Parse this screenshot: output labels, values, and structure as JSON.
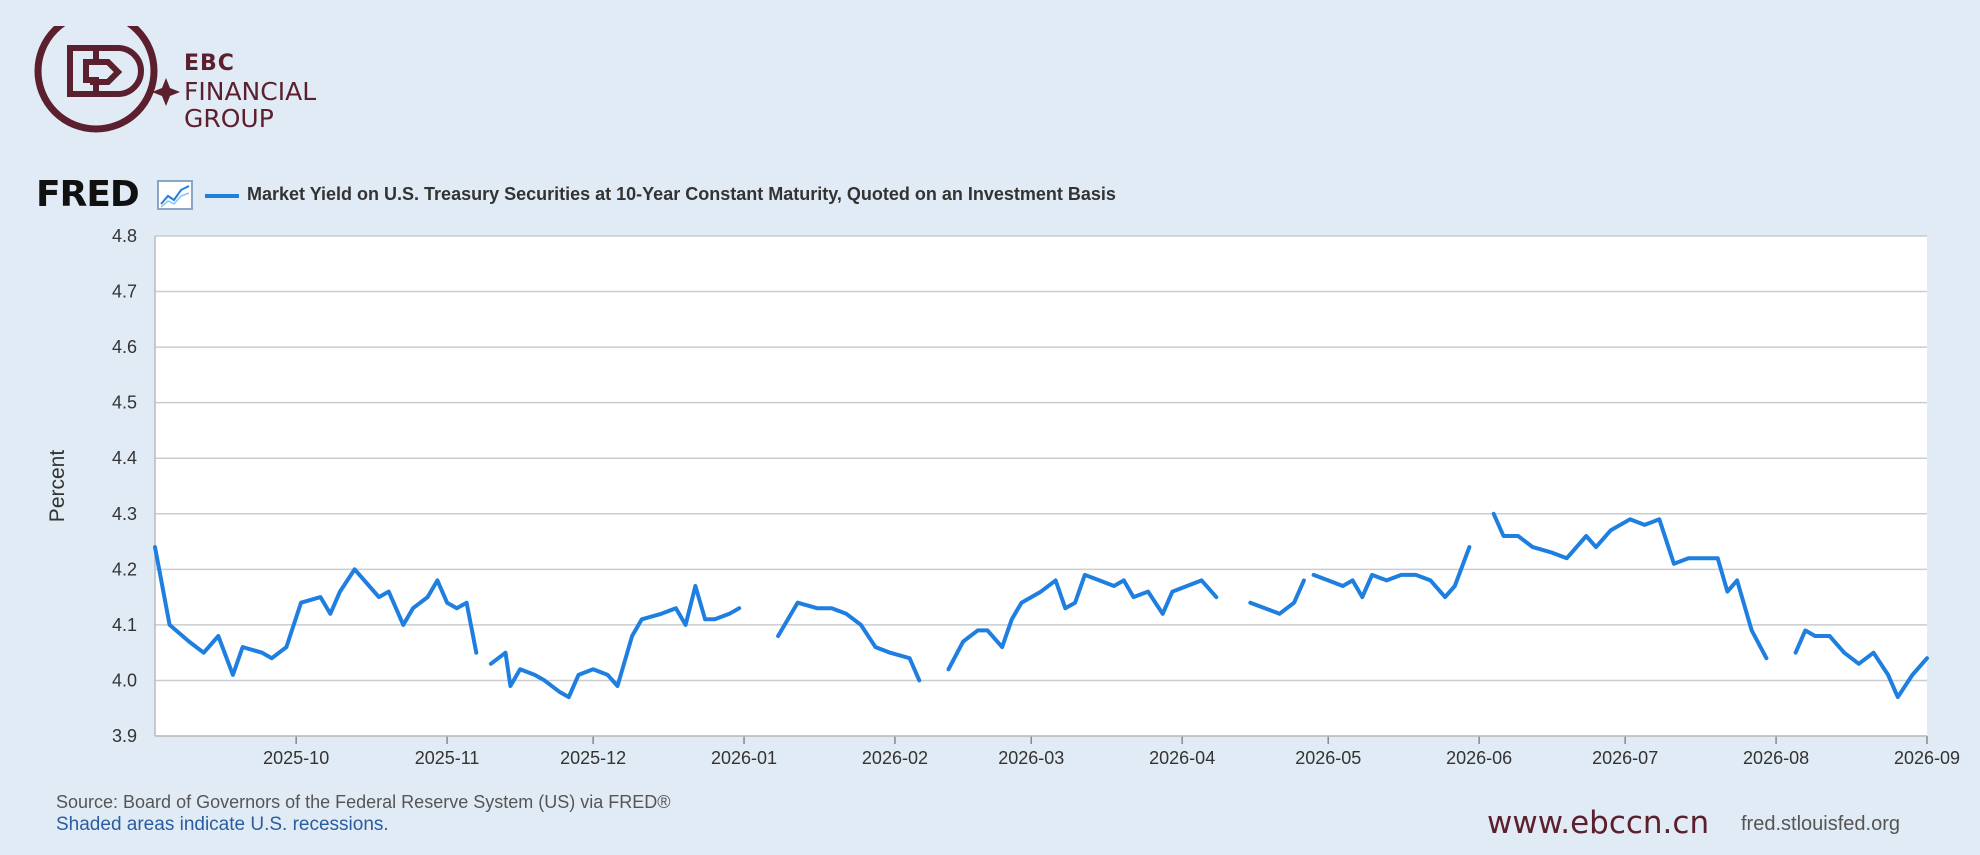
{
  "brand": {
    "line1": "EBC",
    "line2": "FINANCIAL",
    "line3": "GROUP",
    "color": "#5b1f2d"
  },
  "fred_logo": "FRED",
  "legend": {
    "label": "Market Yield on U.S. Treasury Securities at 10-Year Constant Maturity, Quoted on an Investment Basis",
    "color": "#1e7fe0"
  },
  "footer": {
    "source": "Source: Board of Governors of the Federal Reserve System (US) via FRED®",
    "recessions": "Shaded areas indicate U.S. recessions.",
    "website": "www.ebccn.cn",
    "fred_url": "fred.stlouisfed.org"
  },
  "chart_data": {
    "type": "line",
    "ylabel": "Percent",
    "ylim": [
      3.9,
      4.8
    ],
    "yticks": [
      "4.8",
      "4.7",
      "4.6",
      "4.5",
      "4.4",
      "4.3",
      "4.2",
      "4.1",
      "4.0",
      "3.9"
    ],
    "xticks": [
      "2025-10",
      "2025-11",
      "2025-12",
      "2026-01",
      "2026-02",
      "2026-03",
      "2026-04",
      "2026-05",
      "2026-06",
      "2026-07",
      "2026-08",
      "2026-09"
    ],
    "xlim": [
      "2025-09-02",
      "2026-09-01"
    ],
    "grid": true,
    "series": [
      {
        "name": "Market Yield on U.S. Treasury Securities at 10-Year Constant Maturity, Quoted on an Investment Basis",
        "color": "#1e7fe0",
        "segments": [
          [
            [
              "2025-09-02",
              4.24
            ],
            [
              "2025-09-05",
              4.1
            ],
            [
              "2025-09-09",
              4.07
            ],
            [
              "2025-09-12",
              4.05
            ],
            [
              "2025-09-15",
              4.08
            ],
            [
              "2025-09-18",
              4.01
            ],
            [
              "2025-09-20",
              4.06
            ],
            [
              "2025-09-24",
              4.05
            ],
            [
              "2025-09-26",
              4.04
            ],
            [
              "2025-09-29",
              4.06
            ],
            [
              "2025-10-02",
              4.14
            ],
            [
              "2025-10-06",
              4.15
            ],
            [
              "2025-10-08",
              4.12
            ],
            [
              "2025-10-10",
              4.16
            ],
            [
              "2025-10-13",
              4.2
            ],
            [
              "2025-10-16",
              4.17
            ],
            [
              "2025-10-18",
              4.15
            ],
            [
              "2025-10-20",
              4.16
            ],
            [
              "2025-10-23",
              4.1
            ],
            [
              "2025-10-25",
              4.13
            ],
            [
              "2025-10-28",
              4.15
            ],
            [
              "2025-10-30",
              4.18
            ],
            [
              "2025-11-01",
              4.14
            ],
            [
              "2025-11-03",
              4.13
            ],
            [
              "2025-11-05",
              4.14
            ],
            [
              "2025-11-07",
              4.05
            ]
          ],
          [
            [
              "2025-11-10",
              4.03
            ],
            [
              "2025-11-13",
              4.05
            ],
            [
              "2025-11-14",
              3.99
            ],
            [
              "2025-11-16",
              4.02
            ],
            [
              "2025-11-19",
              4.01
            ],
            [
              "2025-11-21",
              4.0
            ],
            [
              "2025-11-24",
              3.98
            ],
            [
              "2025-11-26",
              3.97
            ],
            [
              "2025-11-28",
              4.01
            ],
            [
              "2025-12-01",
              4.02
            ],
            [
              "2025-12-04",
              4.01
            ],
            [
              "2025-12-06",
              3.99
            ],
            [
              "2025-12-09",
              4.08
            ],
            [
              "2025-12-11",
              4.11
            ],
            [
              "2025-12-15",
              4.12
            ],
            [
              "2025-12-18",
              4.13
            ],
            [
              "2025-12-20",
              4.1
            ],
            [
              "2025-12-22",
              4.17
            ],
            [
              "2025-12-24",
              4.11
            ],
            [
              "2025-12-26",
              4.11
            ],
            [
              "2025-12-29",
              4.12
            ],
            [
              "2025-12-31",
              4.13
            ]
          ],
          [
            [
              "2026-01-08",
              4.08
            ],
            [
              "2026-01-12",
              4.14
            ],
            [
              "2026-01-16",
              4.13
            ],
            [
              "2026-01-19",
              4.13
            ],
            [
              "2026-01-22",
              4.12
            ],
            [
              "2026-01-25",
              4.1
            ],
            [
              "2026-01-28",
              4.06
            ],
            [
              "2026-01-31",
              4.05
            ],
            [
              "2026-02-04",
              4.04
            ],
            [
              "2026-02-06",
              4.0
            ]
          ],
          [
            [
              "2026-02-12",
              4.02
            ],
            [
              "2026-02-15",
              4.07
            ],
            [
              "2026-02-18",
              4.09
            ],
            [
              "2026-02-20",
              4.09
            ],
            [
              "2026-02-23",
              4.06
            ],
            [
              "2026-02-25",
              4.11
            ],
            [
              "2026-02-27",
              4.14
            ],
            [
              "2026-03-03",
              4.16
            ],
            [
              "2026-03-06",
              4.18
            ],
            [
              "2026-03-08",
              4.13
            ],
            [
              "2026-03-10",
              4.14
            ],
            [
              "2026-03-12",
              4.19
            ],
            [
              "2026-03-15",
              4.18
            ],
            [
              "2026-03-18",
              4.17
            ],
            [
              "2026-03-20",
              4.18
            ],
            [
              "2026-03-22",
              4.15
            ],
            [
              "2026-03-25",
              4.16
            ],
            [
              "2026-03-28",
              4.12
            ],
            [
              "2026-03-30",
              4.16
            ],
            [
              "2026-04-02",
              4.17
            ],
            [
              "2026-04-05",
              4.18
            ],
            [
              "2026-04-08",
              4.15
            ]
          ],
          [
            [
              "2026-04-15",
              4.14
            ],
            [
              "2026-04-18",
              4.13
            ],
            [
              "2026-04-21",
              4.12
            ],
            [
              "2026-04-24",
              4.14
            ],
            [
              "2026-04-26",
              4.18
            ]
          ],
          [
            [
              "2026-04-28",
              4.19
            ],
            [
              "2026-05-01",
              4.18
            ],
            [
              "2026-05-04",
              4.17
            ],
            [
              "2026-05-06",
              4.18
            ],
            [
              "2026-05-08",
              4.15
            ],
            [
              "2026-05-10",
              4.19
            ],
            [
              "2026-05-13",
              4.18
            ],
            [
              "2026-05-16",
              4.19
            ],
            [
              "2026-05-19",
              4.19
            ],
            [
              "2026-05-22",
              4.18
            ],
            [
              "2026-05-25",
              4.15
            ],
            [
              "2026-05-27",
              4.17
            ],
            [
              "2026-05-30",
              4.24
            ]
          ],
          [
            [
              "2026-06-04",
              4.3
            ],
            [
              "2026-06-06",
              4.26
            ],
            [
              "2026-06-09",
              4.26
            ],
            [
              "2026-06-12",
              4.24
            ],
            [
              "2026-06-16",
              4.23
            ],
            [
              "2026-06-19",
              4.22
            ],
            [
              "2026-06-23",
              4.26
            ],
            [
              "2026-06-25",
              4.24
            ],
            [
              "2026-06-28",
              4.27
            ],
            [
              "2026-07-02",
              4.29
            ],
            [
              "2026-07-05",
              4.28
            ],
            [
              "2026-07-08",
              4.29
            ],
            [
              "2026-07-11",
              4.21
            ],
            [
              "2026-07-14",
              4.22
            ],
            [
              "2026-07-17",
              4.22
            ],
            [
              "2026-07-20",
              4.22
            ],
            [
              "2026-07-22",
              4.16
            ],
            [
              "2026-07-24",
              4.18
            ],
            [
              "2026-07-27",
              4.09
            ],
            [
              "2026-07-30",
              4.04
            ]
          ],
          [
            [
              "2026-08-05",
              4.05
            ],
            [
              "2026-08-07",
              4.09
            ],
            [
              "2026-08-09",
              4.08
            ],
            [
              "2026-08-12",
              4.08
            ],
            [
              "2026-08-15",
              4.05
            ],
            [
              "2026-08-18",
              4.03
            ],
            [
              "2026-08-21",
              4.05
            ],
            [
              "2026-08-24",
              4.01
            ],
            [
              "2026-08-26",
              3.97
            ],
            [
              "2026-08-29",
              4.01
            ],
            [
              "2026-09-01",
              4.04
            ]
          ]
        ]
      }
    ]
  }
}
